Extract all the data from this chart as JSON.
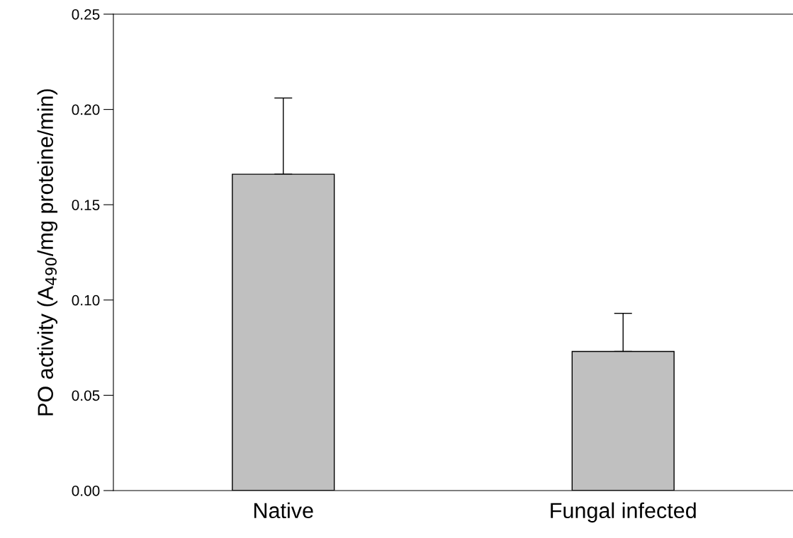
{
  "chart_data": {
    "type": "bar",
    "ylabel": "PO activity (A$_{490}$/mg proteine/min)",
    "categories": [
      "Native",
      "Fungal infected"
    ],
    "values": [
      0.166,
      0.073
    ],
    "errors": [
      [
        0.166,
        0.206
      ],
      [
        0.073,
        0.093
      ]
    ],
    "color": "#c0c0c0",
    "ylim": [
      0,
      0.25
    ],
    "yticks": [
      {
        "value": 0,
        "label": "0.00"
      },
      {
        "value": 0.05,
        "label": "0.05"
      },
      {
        "value": 0.1,
        "label": "0.10"
      },
      {
        "value": 0.15,
        "label": "0.15"
      },
      {
        "value": 0.2,
        "label": "0.20"
      },
      {
        "value": 0.25,
        "label": "0.25"
      }
    ],
    "grid": false
  }
}
